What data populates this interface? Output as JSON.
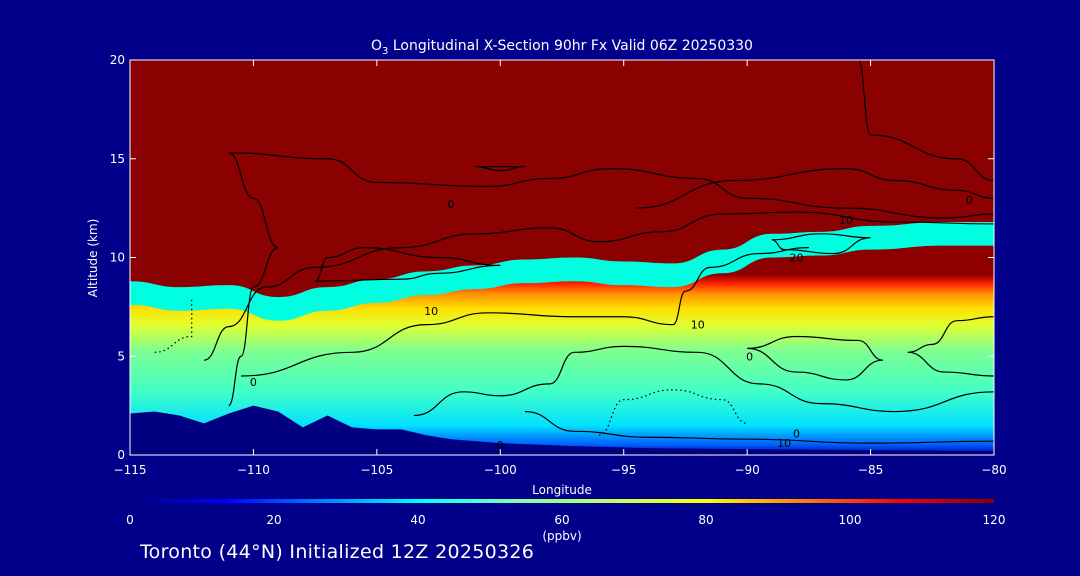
{
  "chart_data": {
    "type": "heatmap",
    "title_prefix": "O",
    "title_sub": "3",
    "title_rest": " Longitudinal X-Section 90hr  Fx Valid 06Z 20250330",
    "xlabel": "Longitude",
    "ylabel": "Altitude (km)",
    "xlim": [
      -115,
      -80
    ],
    "ylim": [
      0,
      20
    ],
    "x_ticks": [
      -115,
      -110,
      -105,
      -100,
      -95,
      -90,
      -85,
      -80
    ],
    "x_tick_labels": [
      "−115",
      "−110",
      "−105",
      "−100",
      "−95",
      "−90",
      "−85",
      "−80"
    ],
    "y_ticks": [
      0,
      5,
      10,
      15,
      20
    ],
    "y_tick_labels": [
      "0",
      "5",
      "10",
      "15",
      "20"
    ],
    "colorbar": {
      "label": "(ppbv)",
      "range": [
        0,
        120
      ],
      "ticks": [
        0,
        20,
        40,
        60,
        80,
        100,
        120
      ],
      "tick_labels": [
        "0",
        "20",
        "40",
        "60",
        "80",
        "100",
        "120"
      ],
      "colors": [
        "#000080",
        "#0000ff",
        "#0080ff",
        "#00ffff",
        "#80ffb0",
        "#c0ff60",
        "#ffff00",
        "#ff8000",
        "#ff0000",
        "#800000"
      ]
    },
    "terrain_km": [
      [
        -115,
        2.1
      ],
      [
        -114,
        2.2
      ],
      [
        -113,
        2.0
      ],
      [
        -112,
        1.6
      ],
      [
        -111,
        2.1
      ],
      [
        -110,
        2.5
      ],
      [
        -109,
        2.2
      ],
      [
        -108,
        1.4
      ],
      [
        -107,
        2.0
      ],
      [
        -106,
        1.4
      ],
      [
        -105,
        1.3
      ],
      [
        -104,
        1.3
      ],
      [
        -103,
        1.0
      ],
      [
        -102,
        0.8
      ],
      [
        -100,
        0.6
      ],
      [
        -97,
        0.45
      ],
      [
        -94,
        0.35
      ],
      [
        -90,
        0.3
      ],
      [
        -85,
        0.25
      ],
      [
        -80,
        0.2
      ]
    ],
    "tropopause_km": [
      [
        -115,
        8.8
      ],
      [
        -113,
        8.5
      ],
      [
        -111,
        8.6
      ],
      [
        -109,
        8.0
      ],
      [
        -107,
        8.5
      ],
      [
        -105,
        8.9
      ],
      [
        -103,
        9.3
      ],
      [
        -101,
        9.6
      ],
      [
        -99,
        9.9
      ],
      [
        -97,
        10.0
      ],
      [
        -95,
        9.8
      ],
      [
        -93,
        9.7
      ],
      [
        -91,
        10.4
      ],
      [
        -89,
        11.2
      ],
      [
        -87,
        11.3
      ],
      [
        -85,
        11.6
      ],
      [
        -82,
        11.8
      ],
      [
        -80,
        11.8
      ]
    ],
    "contour_labels": [
      {
        "text": "0",
        "x": -115.2,
        "y": 11.0
      },
      {
        "text": "0",
        "x": -102,
        "y": 12.7
      },
      {
        "text": "0",
        "x": -81,
        "y": 12.9
      },
      {
        "text": "10",
        "x": -86.0,
        "y": 11.9
      },
      {
        "text": "20",
        "x": -88.0,
        "y": 10.0
      },
      {
        "text": "10",
        "x": -102.8,
        "y": 7.3
      },
      {
        "text": "10",
        "x": -92.0,
        "y": 6.6
      },
      {
        "text": "0",
        "x": -110.0,
        "y": 3.7
      },
      {
        "text": "0",
        "x": -89.9,
        "y": 5.0
      },
      {
        "text": "0",
        "x": -88.0,
        "y": 1.1
      },
      {
        "text": "10",
        "x": -88.5,
        "y": 0.6
      },
      {
        "text": "0",
        "x": -100.0,
        "y": 0.5
      }
    ]
  },
  "footer": "Toronto (44°N) Initialized 12Z 20250326"
}
